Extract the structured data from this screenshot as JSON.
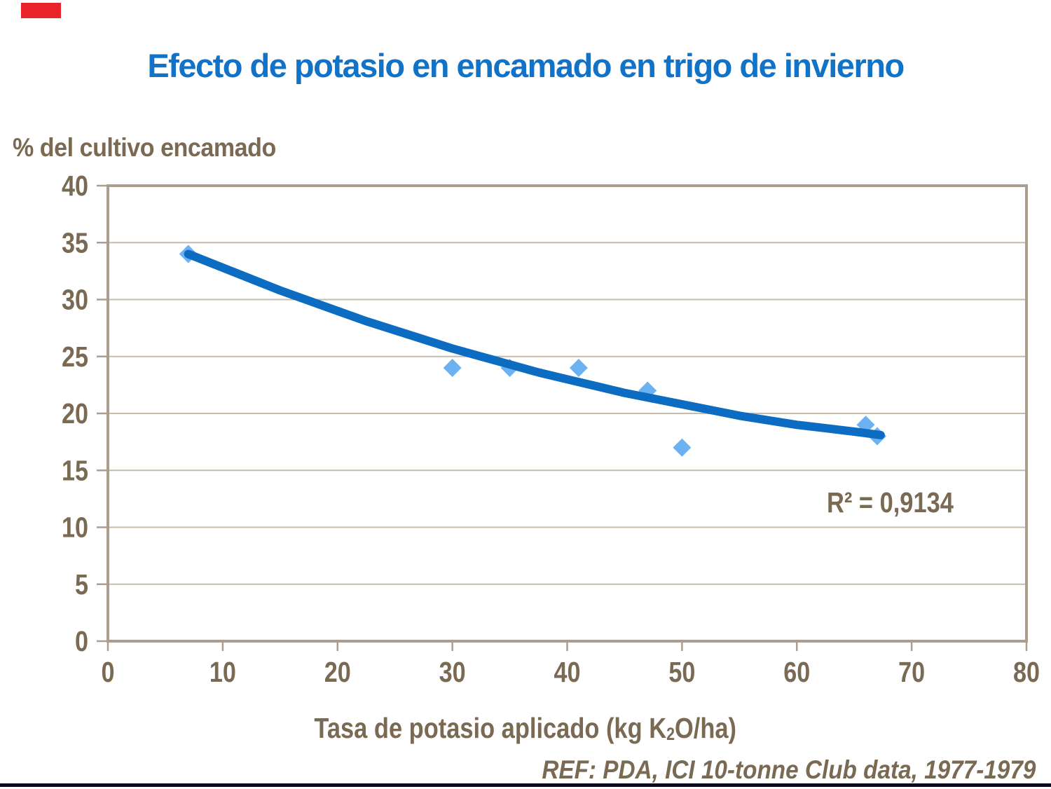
{
  "slide": {
    "title": "Efecto de potasio en encamado en trigo de invierno",
    "footer_ref": "REF: PDA, ICI 10-tonne Club data, 1977-1979"
  },
  "colors": {
    "title_blue": "#1173C8",
    "text_brown": "#7A6A53",
    "axis_frame_tan": "#AC9E8E",
    "gridline_tan": "#C6BBAC",
    "trend_blue": "#0B6CC2",
    "marker_blue": "#6CB2F2",
    "corner_red": "#E8242B",
    "bottom_rule_dark": "#0A0A1E"
  },
  "chart_data": {
    "type": "scatter",
    "title": "Efecto de potasio en encamado en trigo de invierno",
    "y_axis_label": "% del cultivo encamado",
    "x_axis_label": "Tasa de potasio aplicado (kg K2O/ha)",
    "x_axis_label_parts": {
      "prefix": "Tasa de potasio aplicado (kg K",
      "subscript": "2",
      "suffix": "O/ha)"
    },
    "xlim": [
      0,
      80
    ],
    "ylim": [
      0,
      40
    ],
    "x_ticks": [
      0,
      10,
      20,
      30,
      40,
      50,
      60,
      70,
      80
    ],
    "y_ticks": [
      0,
      5,
      10,
      15,
      20,
      25,
      30,
      35,
      40
    ],
    "grid": "horizontal-only",
    "legend": "none",
    "marker_shape": "diamond",
    "points": [
      [
        7,
        34
      ],
      [
        30,
        24
      ],
      [
        35,
        24
      ],
      [
        41,
        24
      ],
      [
        47,
        22
      ],
      [
        50,
        17
      ],
      [
        66,
        19
      ],
      [
        67,
        18
      ]
    ],
    "trendline": {
      "kind": "power-fit",
      "r2_label": "R² = 0,9134",
      "r_squared_value": "0,9134",
      "curve_points": [
        [
          7,
          34
        ],
        [
          9,
          33.2
        ],
        [
          11,
          32.4
        ],
        [
          13,
          31.6
        ],
        [
          15,
          30.8
        ],
        [
          17.5,
          29.9
        ],
        [
          20,
          29
        ],
        [
          22.5,
          28.1
        ],
        [
          25,
          27.3
        ],
        [
          27.5,
          26.5
        ],
        [
          30,
          25.7
        ],
        [
          32.5,
          25
        ],
        [
          35,
          24.3
        ],
        [
          37.5,
          23.6
        ],
        [
          40,
          23
        ],
        [
          42.5,
          22.4
        ],
        [
          45,
          21.8
        ],
        [
          47.5,
          21.3
        ],
        [
          50,
          20.8
        ],
        [
          52.5,
          20.3
        ],
        [
          55,
          19.8
        ],
        [
          57.5,
          19.4
        ],
        [
          60,
          19
        ],
        [
          62.5,
          18.7
        ],
        [
          65,
          18.4
        ],
        [
          67.3,
          18.1
        ]
      ]
    }
  }
}
